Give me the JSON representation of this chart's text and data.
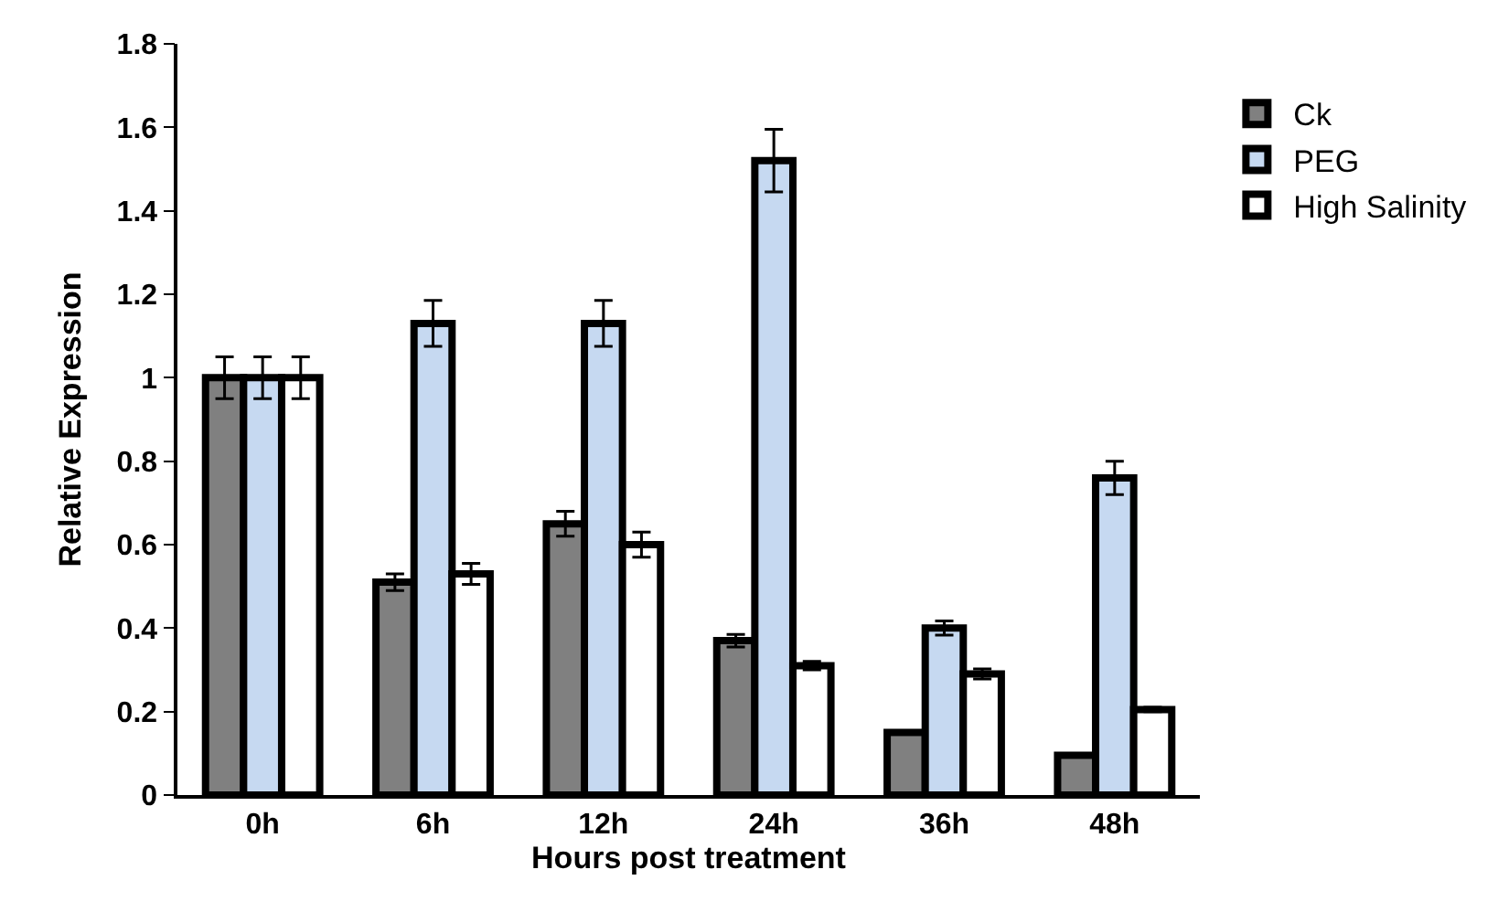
{
  "chart_data": {
    "type": "bar",
    "xlabel": "Hours post treatment",
    "ylabel": "Relative Expression",
    "categories": [
      "0h",
      "6h",
      "12h",
      "24h",
      "36h",
      "48h"
    ],
    "series": [
      {
        "name": "Ck",
        "color": "#808080",
        "values": [
          1,
          0.51,
          0.65,
          0.37,
          0.15,
          0.095
        ],
        "errors": [
          0.05,
          0.02,
          0.03,
          0.015,
          null,
          null
        ]
      },
      {
        "name": "PEG",
        "color": "#c6d9f1",
        "values": [
          1,
          1.13,
          1.13,
          1.52,
          0.4,
          0.76
        ],
        "errors": [
          0.05,
          0.055,
          0.055,
          0.075,
          0.017,
          0.04
        ]
      },
      {
        "name": "High Salinity",
        "color": "#ffffff",
        "values": [
          1,
          0.53,
          0.6,
          0.31,
          0.29,
          0.205
        ],
        "errors": [
          0.05,
          0.025,
          0.03,
          0.01,
          0.012,
          0.005
        ]
      }
    ],
    "ylim": [
      0,
      1.8
    ],
    "yticks": [
      0,
      0.2,
      0.4,
      0.6,
      0.8,
      1,
      1.2,
      1.4,
      1.6,
      1.8
    ],
    "legend": "top right"
  }
}
